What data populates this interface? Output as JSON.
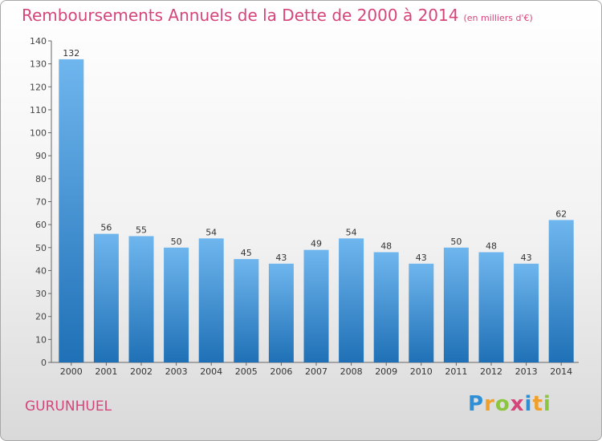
{
  "chart_data": {
    "type": "bar",
    "title": "Remboursements Annuels de la Dette de 2000 à 2014",
    "unit": "(en milliers d'€)",
    "categories": [
      "2000",
      "2001",
      "2002",
      "2003",
      "2004",
      "2005",
      "2006",
      "2007",
      "2008",
      "2009",
      "2010",
      "2011",
      "2012",
      "2013",
      "2014"
    ],
    "values": [
      132,
      56,
      55,
      50,
      54,
      45,
      43,
      49,
      54,
      48,
      43,
      50,
      48,
      43,
      62
    ],
    "ylim": [
      0,
      140
    ],
    "yticks": [
      0,
      10,
      20,
      30,
      40,
      50,
      60,
      70,
      80,
      90,
      100,
      110,
      120,
      130,
      140
    ],
    "bar_color": "#3a8fd6",
    "grid": false,
    "legend": "none"
  },
  "commune": "GURUNHUEL",
  "logo": {
    "letters": [
      "P",
      "r",
      "o",
      "x",
      "i",
      "t",
      "i"
    ],
    "colors": [
      "#2e8fd6",
      "#f0a02a",
      "#8cc63f",
      "#d6457a",
      "#2e8fd6",
      "#f0a02a",
      "#8cc63f"
    ]
  }
}
